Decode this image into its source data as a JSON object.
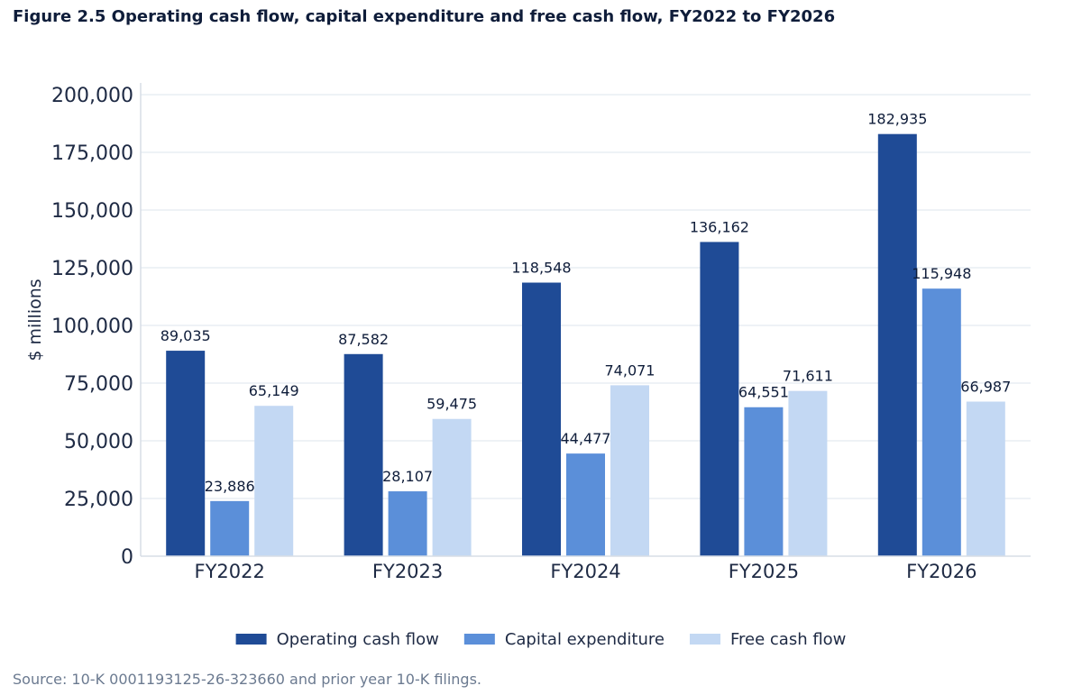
{
  "figure": {
    "title": "Figure 2.5  Operating cash flow, capital expenditure and free cash flow, FY2022 to FY2026",
    "source": "Source: 10-K 0001193125-26-323660 and prior year 10-K filings."
  },
  "chart_data": {
    "type": "bar",
    "categories": [
      "FY2022",
      "FY2023",
      "FY2024",
      "FY2025",
      "FY2026"
    ],
    "series": [
      {
        "name": "Operating cash flow",
        "color": "#1f4b96",
        "values": [
          89035,
          87582,
          118548,
          136162,
          182935
        ]
      },
      {
        "name": "Capital expenditure",
        "color": "#5b8fd9",
        "values": [
          23886,
          28107,
          44477,
          64551,
          115948
        ]
      },
      {
        "name": "Free cash flow",
        "color": "#c3d8f3",
        "values": [
          65149,
          59475,
          74071,
          71611,
          66987
        ]
      }
    ],
    "ylabel": "$ millions",
    "xlabel": "",
    "ylim": [
      0,
      200000
    ],
    "yticks": [
      0,
      25000,
      50000,
      75000,
      100000,
      125000,
      150000,
      175000,
      200000
    ],
    "grid": true,
    "legend_position": "bottom-center"
  }
}
